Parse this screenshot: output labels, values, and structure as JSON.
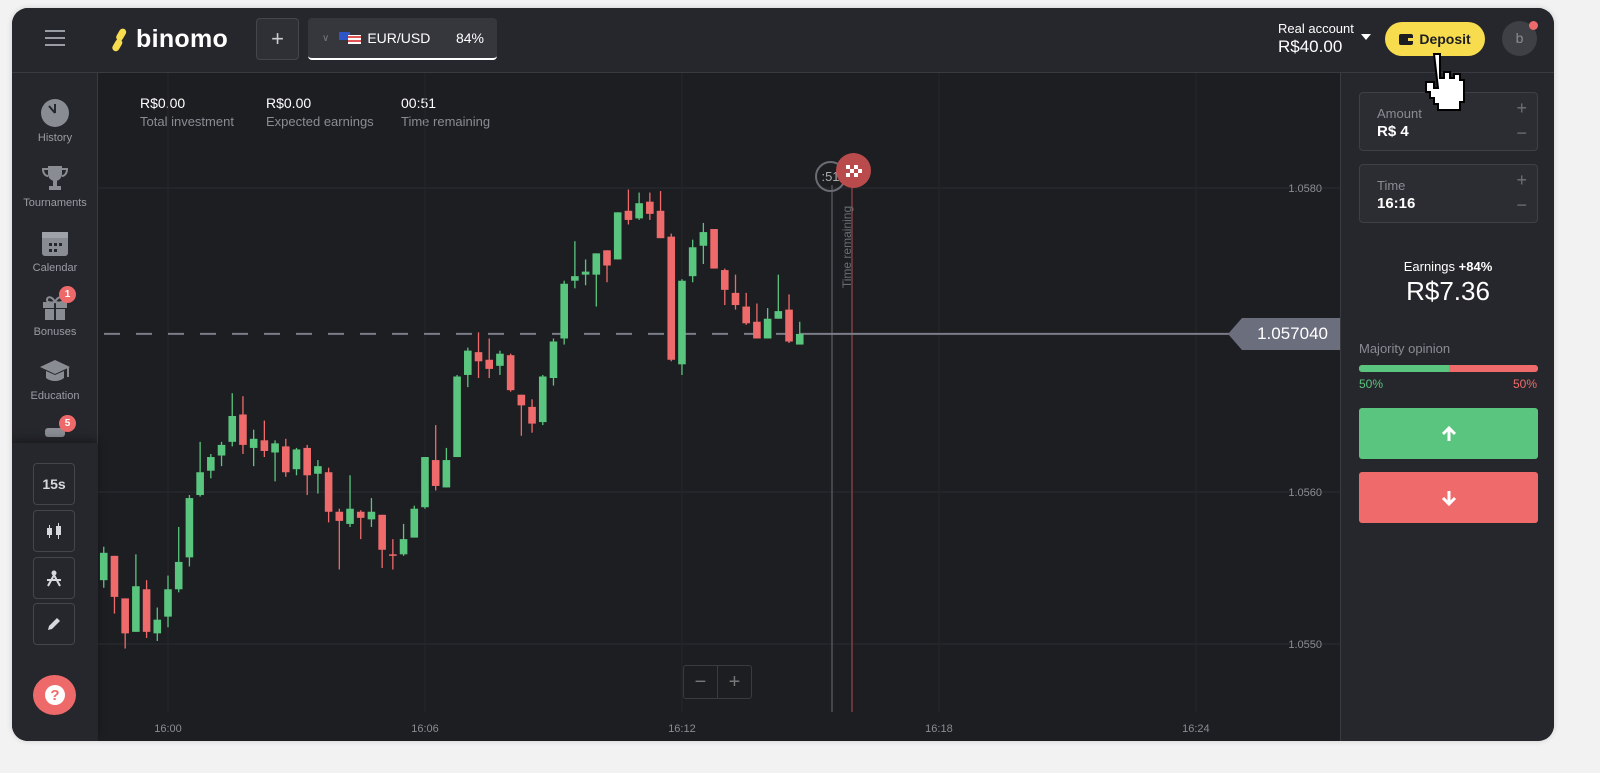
{
  "header": {
    "logo": "binomo",
    "add_asset_label": "+",
    "asset": {
      "name": "EUR/USD",
      "payout": "84%"
    },
    "account": {
      "type": "Real account",
      "balance": "R$40.00"
    },
    "deposit_label": "Deposit",
    "avatar_initial": "b"
  },
  "stats": [
    {
      "value": "R$0.00",
      "label": "Total investment"
    },
    {
      "value": "R$0.00",
      "label": "Expected earnings"
    },
    {
      "value": "00:51",
      "label": "Time remaining"
    }
  ],
  "sidebar": {
    "items": [
      {
        "label": "History",
        "icon": "clock-icon"
      },
      {
        "label": "Tournaments",
        "icon": "trophy-icon"
      },
      {
        "label": "Calendar",
        "icon": "calendar-icon"
      },
      {
        "label": "Bonuses",
        "icon": "gift-icon",
        "badge": "1"
      },
      {
        "label": "Education",
        "icon": "graduation-cap-icon"
      },
      {
        "label": "",
        "icon": "megaphone-icon",
        "badge": "5"
      }
    ],
    "tools": {
      "timeframe": "15s",
      "chart_type_icon": "candles-icon",
      "indicators_icon": "compass-icon",
      "drawing_icon": "pencil-icon"
    },
    "help_icon": "help-icon"
  },
  "chart": {
    "type": "candlestick",
    "interval": "15s",
    "x_ticks": [
      "16:00",
      "16:06",
      "16:12",
      "16:18",
      "16:24"
    ],
    "y_ticks": [
      "1.0580",
      "1.0560",
      "1.0550"
    ],
    "current_price": "1.057040",
    "timer": ":51",
    "time_remaining_label": "Time remaining",
    "zoom_out": "−",
    "zoom_in": "+",
    "colors": {
      "up": "#5ac57e",
      "down": "#ef6b6b"
    },
    "candles_columns": [
      "time",
      "open",
      "high",
      "low",
      "close"
    ],
    "candles": [
      [
        "15:58:30",
        1.05542,
        1.05564,
        1.05537,
        1.0556
      ],
      [
        "15:58:45",
        1.05558,
        1.05558,
        1.0552,
        1.05531
      ],
      [
        "15:59:00",
        1.0553,
        1.0553,
        1.05497,
        1.05507
      ],
      [
        "15:59:15",
        1.05508,
        1.05559,
        1.05508,
        1.05538
      ],
      [
        "15:59:30",
        1.05536,
        1.05542,
        1.05504,
        1.05508
      ],
      [
        "15:59:45",
        1.05507,
        1.05524,
        1.05502,
        1.05516
      ],
      [
        "16:00:00",
        1.05518,
        1.05545,
        1.05511,
        1.05536
      ],
      [
        "16:00:15",
        1.05536,
        1.05577,
        1.05534,
        1.05554
      ],
      [
        "16:00:30",
        1.05557,
        1.05598,
        1.05551,
        1.05596
      ],
      [
        "16:00:45",
        1.05598,
        1.05633,
        1.05597,
        1.05613
      ],
      [
        "16:01:00",
        1.05614,
        1.05625,
        1.05609,
        1.05623
      ],
      [
        "16:01:15",
        1.05624,
        1.05633,
        1.05617,
        1.05631
      ],
      [
        "16:01:30",
        1.05633,
        1.05665,
        1.0563,
        1.0565
      ],
      [
        "16:01:45",
        1.05651,
        1.05663,
        1.05625,
        1.05631
      ],
      [
        "16:02:00",
        1.05629,
        1.05641,
        1.05617,
        1.05635
      ],
      [
        "16:02:15",
        1.05634,
        1.05647,
        1.05623,
        1.05627
      ],
      [
        "16:02:30",
        1.05626,
        1.05634,
        1.05607,
        1.05632
      ],
      [
        "16:02:45",
        1.0563,
        1.05635,
        1.0561,
        1.05613
      ],
      [
        "16:03:00",
        1.05615,
        1.05629,
        1.05611,
        1.05628
      ],
      [
        "16:03:15",
        1.05629,
        1.05631,
        1.05598,
        1.05611
      ],
      [
        "16:03:30",
        1.05612,
        1.05621,
        1.05599,
        1.05617
      ],
      [
        "16:03:45",
        1.05613,
        1.05616,
        1.0558,
        1.05587
      ],
      [
        "16:04:00",
        1.05587,
        1.05589,
        1.05549,
        1.05581
      ],
      [
        "16:04:15",
        1.05579,
        1.05611,
        1.05577,
        1.05589
      ],
      [
        "16:04:30",
        1.05587,
        1.05588,
        1.05569,
        1.05583
      ],
      [
        "16:04:45",
        1.05582,
        1.05596,
        1.05577,
        1.05587
      ],
      [
        "16:05:00",
        1.05585,
        1.05585,
        1.0555,
        1.05562
      ],
      [
        "16:05:15",
        1.05559,
        1.05569,
        1.05549,
        1.05558
      ],
      [
        "16:05:30",
        1.05559,
        1.05579,
        1.05558,
        1.05569
      ],
      [
        "16:05:45",
        1.0557,
        1.05591,
        1.0557,
        1.05589
      ],
      [
        "16:06:00",
        1.0559,
        1.05623,
        1.05589,
        1.05623
      ],
      [
        "16:06:15",
        1.05621,
        1.05644,
        1.05601,
        1.05604
      ],
      [
        "16:06:30",
        1.05603,
        1.05629,
        1.05603,
        1.05621
      ],
      [
        "16:06:45",
        1.05623,
        1.05677,
        1.05623,
        1.05676
      ],
      [
        "16:07:00",
        1.05677,
        1.05695,
        1.05669,
        1.05693
      ],
      [
        "16:07:15",
        1.05692,
        1.05705,
        1.05675,
        1.05686
      ],
      [
        "16:07:30",
        1.05687,
        1.05701,
        1.05675,
        1.05681
      ],
      [
        "16:07:45",
        1.05683,
        1.05693,
        1.05677,
        1.05691
      ],
      [
        "16:08:00",
        1.0569,
        1.05691,
        1.05666,
        1.05667
      ],
      [
        "16:08:15",
        1.05664,
        1.05664,
        1.05637,
        1.05657
      ],
      [
        "16:08:30",
        1.05656,
        1.05661,
        1.05639,
        1.05645
      ],
      [
        "16:08:45",
        1.05646,
        1.05677,
        1.05644,
        1.05676
      ],
      [
        "16:09:00",
        1.05675,
        1.05701,
        1.0567,
        1.05699
      ],
      [
        "16:09:15",
        1.05701,
        1.05739,
        1.05697,
        1.05737
      ],
      [
        "16:09:30",
        1.05739,
        1.05765,
        1.05734,
        1.05742
      ],
      [
        "16:09:45",
        1.05743,
        1.05753,
        1.05736,
        1.05745
      ],
      [
        "16:10:00",
        1.05743,
        1.05757,
        1.05722,
        1.05757
      ],
      [
        "16:10:15",
        1.05759,
        1.05759,
        1.05738,
        1.05749
      ],
      [
        "16:10:30",
        1.05753,
        1.05784,
        1.05753,
        1.05784
      ],
      [
        "16:10:45",
        1.05785,
        1.05799,
        1.05776,
        1.05779
      ],
      [
        "16:11:00",
        1.0578,
        1.05797,
        1.05779,
        1.0579
      ],
      [
        "16:11:15",
        1.05791,
        1.05797,
        1.05779,
        1.05783
      ],
      [
        "16:11:30",
        1.05785,
        1.05798,
        1.05767,
        1.05767
      ],
      [
        "16:11:45",
        1.05768,
        1.0577,
        1.05686,
        1.05687
      ],
      [
        "16:12:00",
        1.05684,
        1.0574,
        1.05677,
        1.05739
      ],
      [
        "16:12:15",
        1.05742,
        1.05766,
        1.05738,
        1.05761
      ],
      [
        "16:12:30",
        1.05762,
        1.05777,
        1.0575,
        1.05771
      ],
      [
        "16:12:45",
        1.05773,
        1.05773,
        1.05747,
        1.05747
      ],
      [
        "16:13:00",
        1.05746,
        1.05747,
        1.05723,
        1.05733
      ],
      [
        "16:13:15",
        1.05731,
        1.05743,
        1.0572,
        1.05723
      ],
      [
        "16:13:30",
        1.05722,
        1.05731,
        1.0571,
        1.05711
      ],
      [
        "16:13:45",
        1.05712,
        1.05724,
        1.05701,
        1.05701
      ],
      [
        "16:14:00",
        1.05701,
        1.05721,
        1.05701,
        1.05714
      ],
      [
        "16:14:15",
        1.05714,
        1.05743,
        1.05714,
        1.05719
      ],
      [
        "16:14:30",
        1.0572,
        1.0573,
        1.05698,
        1.05699
      ],
      [
        "16:14:45",
        1.05697,
        1.05712,
        1.05697,
        1.05704
      ]
    ]
  },
  "trade_panel": {
    "amount": {
      "label": "Amount",
      "value": "R$ 4",
      "plus": "+",
      "minus": "−"
    },
    "time": {
      "label": "Time",
      "value": "16:16",
      "plus": "+",
      "minus": "−"
    },
    "earnings_label": "Earnings",
    "earnings_percent": "+84%",
    "earnings_value": "R$7.36",
    "majority_label": "Majority opinion",
    "majority_up": "50%",
    "majority_down": "50%",
    "majority_up_fraction": 0.5,
    "up_icon": "arrow-up-icon",
    "down_icon": "arrow-down-icon"
  },
  "colors": {
    "accent": "#f7dc4e",
    "up": "#5ac57e",
    "down": "#ef6b6b"
  }
}
